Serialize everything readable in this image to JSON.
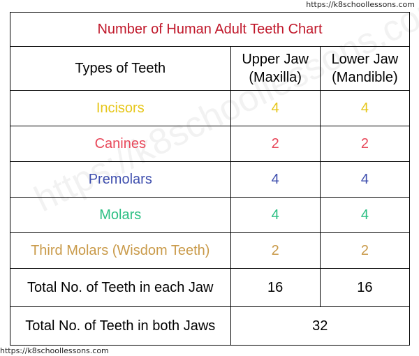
{
  "source_top": "https://k8schoollessons.com",
  "source_bottom": "https://k8schoollessons.com",
  "watermark": "https://k8schoollessons.com",
  "colors": {
    "title": "#c0172a",
    "incisors": "#e6c619",
    "canines": "#e8485a",
    "premolars": "#3f4fae",
    "molars": "#2bbf83",
    "third_molars": "#c99a49"
  },
  "table": {
    "title": "Number of Human Adult Teeth Chart",
    "header": {
      "type": "Types of Teeth",
      "upper_line1": "Upper Jaw",
      "upper_line2": "(Maxilla)",
      "lower_line1": "Lower Jaw",
      "lower_line2": "(Mandible)"
    },
    "rows": [
      {
        "type": "Incisors",
        "upper": "4",
        "lower": "4"
      },
      {
        "type": "Canines",
        "upper": "2",
        "lower": "2"
      },
      {
        "type": "Premolars",
        "upper": "4",
        "lower": "4"
      },
      {
        "type": "Molars",
        "upper": "4",
        "lower": "4"
      },
      {
        "type": "Third Molars (Wisdom Teeth)",
        "upper": "2",
        "lower": "2"
      }
    ],
    "total_each": {
      "label": "Total No. of Teeth in each Jaw",
      "upper": "16",
      "lower": "16"
    },
    "total_both": {
      "label": "Total No. of Teeth in both Jaws",
      "value": "32"
    }
  }
}
